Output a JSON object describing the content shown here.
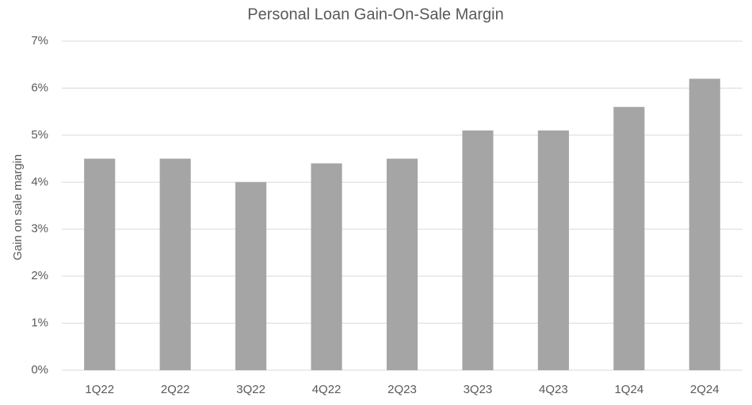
{
  "chart_data": {
    "type": "bar",
    "title": "Personal Loan Gain-On-Sale Margin",
    "y_label": "Gain on sale margin",
    "categories": [
      "1Q22",
      "2Q22",
      "3Q22",
      "4Q22",
      "2Q23",
      "3Q23",
      "4Q23",
      "1Q24",
      "2Q24"
    ],
    "values": [
      4.5,
      4.5,
      4.0,
      4.4,
      4.5,
      5.1,
      5.1,
      5.6,
      6.2
    ],
    "color": "#a5a5a5",
    "ylim": [
      0,
      7
    ],
    "yticks": [
      {
        "value": 0,
        "label": "0%"
      },
      {
        "value": 1,
        "label": "1%"
      },
      {
        "value": 2,
        "label": "2%"
      },
      {
        "value": 3,
        "label": "3%"
      },
      {
        "value": 4,
        "label": "4%"
      },
      {
        "value": 5,
        "label": "5%"
      },
      {
        "value": 6,
        "label": "6%"
      },
      {
        "value": 7,
        "label": "7%"
      }
    ],
    "grid": true
  }
}
